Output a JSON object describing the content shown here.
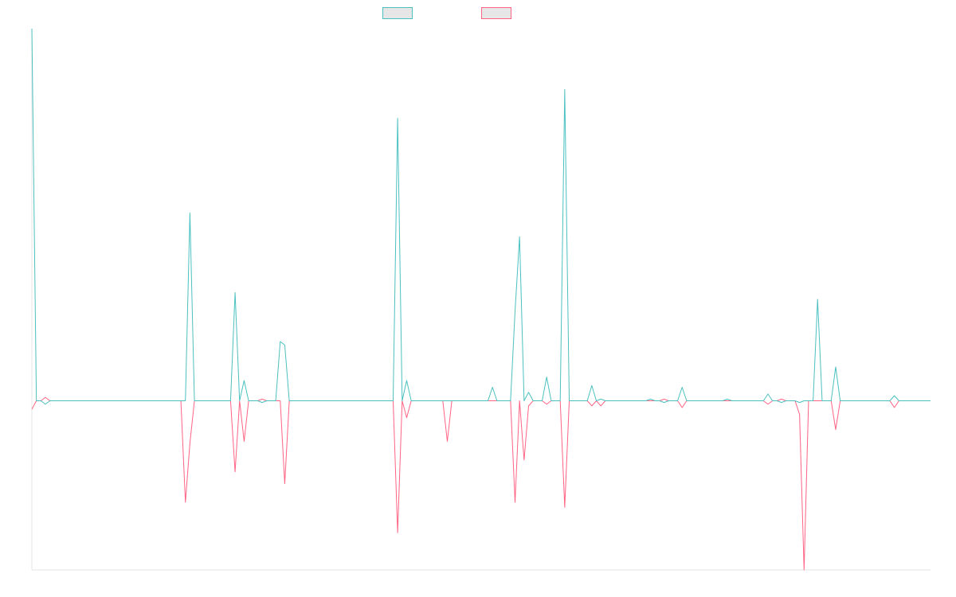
{
  "chart_data": {
    "type": "line",
    "title": "",
    "xlabel": "",
    "ylabel": "",
    "grid": false,
    "legend": "top-center",
    "ylim": [
      -100,
      220
    ],
    "x_count": 200,
    "series": [
      {
        "name": "",
        "color": "#4bc0c0",
        "points": [
          [
            0,
            220
          ],
          [
            1,
            0
          ],
          [
            2,
            0
          ],
          [
            3,
            -2
          ],
          [
            4,
            0
          ],
          [
            33,
            0
          ],
          [
            34,
            0
          ],
          [
            35,
            111
          ],
          [
            36,
            0
          ],
          [
            44,
            0
          ],
          [
            45,
            64
          ],
          [
            46,
            0
          ],
          [
            47,
            12
          ],
          [
            48,
            0
          ],
          [
            50,
            0
          ],
          [
            51,
            -1
          ],
          [
            52,
            0
          ],
          [
            54,
            0
          ],
          [
            55,
            35
          ],
          [
            56,
            33
          ],
          [
            57,
            0
          ],
          [
            80,
            0
          ],
          [
            81,
            167
          ],
          [
            82,
            0
          ],
          [
            83,
            12
          ],
          [
            84,
            0
          ],
          [
            101,
            0
          ],
          [
            102,
            8
          ],
          [
            103,
            0
          ],
          [
            106,
            0
          ],
          [
            107,
            53
          ],
          [
            108,
            97
          ],
          [
            109,
            0
          ],
          [
            110,
            5
          ],
          [
            111,
            0
          ],
          [
            113,
            0
          ],
          [
            114,
            14
          ],
          [
            115,
            0
          ],
          [
            117,
            0
          ],
          [
            118,
            184
          ],
          [
            119,
            0
          ],
          [
            123,
            0
          ],
          [
            124,
            9
          ],
          [
            125,
            0
          ],
          [
            126,
            1
          ],
          [
            127,
            0
          ],
          [
            136,
            0
          ],
          [
            137,
            1
          ],
          [
            138,
            0
          ],
          [
            139,
            0
          ],
          [
            140,
            -1
          ],
          [
            141,
            0
          ],
          [
            143,
            0
          ],
          [
            144,
            8
          ],
          [
            145,
            0
          ],
          [
            153,
            0
          ],
          [
            154,
            1
          ],
          [
            155,
            0
          ],
          [
            162,
            0
          ],
          [
            163,
            4
          ],
          [
            164,
            0
          ],
          [
            165,
            0
          ],
          [
            166,
            -1
          ],
          [
            167,
            0
          ],
          [
            169,
            0
          ],
          [
            170,
            -1
          ],
          [
            171,
            0
          ],
          [
            173,
            0
          ],
          [
            174,
            60
          ],
          [
            175,
            0
          ],
          [
            177,
            0
          ],
          [
            178,
            20
          ],
          [
            179,
            0
          ],
          [
            190,
            0
          ],
          [
            191,
            3
          ],
          [
            192,
            0
          ],
          [
            199,
            0
          ]
        ]
      },
      {
        "name": "",
        "color": "#ff6384",
        "points": [
          [
            0,
            -5
          ],
          [
            1,
            0
          ],
          [
            2,
            0
          ],
          [
            3,
            2
          ],
          [
            4,
            0
          ],
          [
            33,
            0
          ],
          [
            34,
            -60
          ],
          [
            35,
            -25
          ],
          [
            36,
            0
          ],
          [
            44,
            0
          ],
          [
            45,
            -42
          ],
          [
            46,
            0
          ],
          [
            47,
            -24
          ],
          [
            48,
            0
          ],
          [
            50,
            0
          ],
          [
            51,
            1
          ],
          [
            52,
            0
          ],
          [
            54,
            0
          ],
          [
            55,
            0
          ],
          [
            56,
            -49
          ],
          [
            57,
            0
          ],
          [
            80,
            0
          ],
          [
            81,
            -78
          ],
          [
            82,
            0
          ],
          [
            83,
            -10
          ],
          [
            84,
            0
          ],
          [
            91,
            0
          ],
          [
            92,
            -24
          ],
          [
            93,
            0
          ],
          [
            101,
            0
          ],
          [
            102,
            0
          ],
          [
            103,
            0
          ],
          [
            106,
            0
          ],
          [
            107,
            -60
          ],
          [
            108,
            0
          ],
          [
            109,
            -35
          ],
          [
            110,
            -3
          ],
          [
            111,
            0
          ],
          [
            113,
            0
          ],
          [
            114,
            -2
          ],
          [
            115,
            0
          ],
          [
            117,
            0
          ],
          [
            118,
            -63
          ],
          [
            119,
            0
          ],
          [
            123,
            0
          ],
          [
            124,
            -3
          ],
          [
            125,
            0
          ],
          [
            126,
            -3
          ],
          [
            127,
            0
          ],
          [
            136,
            0
          ],
          [
            137,
            0
          ],
          [
            138,
            0
          ],
          [
            139,
            0
          ],
          [
            140,
            1
          ],
          [
            141,
            0
          ],
          [
            143,
            0
          ],
          [
            144,
            -4
          ],
          [
            145,
            0
          ],
          [
            162,
            0
          ],
          [
            163,
            -2
          ],
          [
            164,
            0
          ],
          [
            165,
            0
          ],
          [
            166,
            1
          ],
          [
            167,
            0
          ],
          [
            169,
            0
          ],
          [
            170,
            -8
          ],
          [
            171,
            -100
          ],
          [
            172,
            0
          ],
          [
            177,
            0
          ],
          [
            178,
            -17
          ],
          [
            179,
            0
          ],
          [
            190,
            0
          ],
          [
            191,
            -4
          ],
          [
            192,
            0
          ],
          [
            199,
            0
          ]
        ]
      }
    ]
  }
}
